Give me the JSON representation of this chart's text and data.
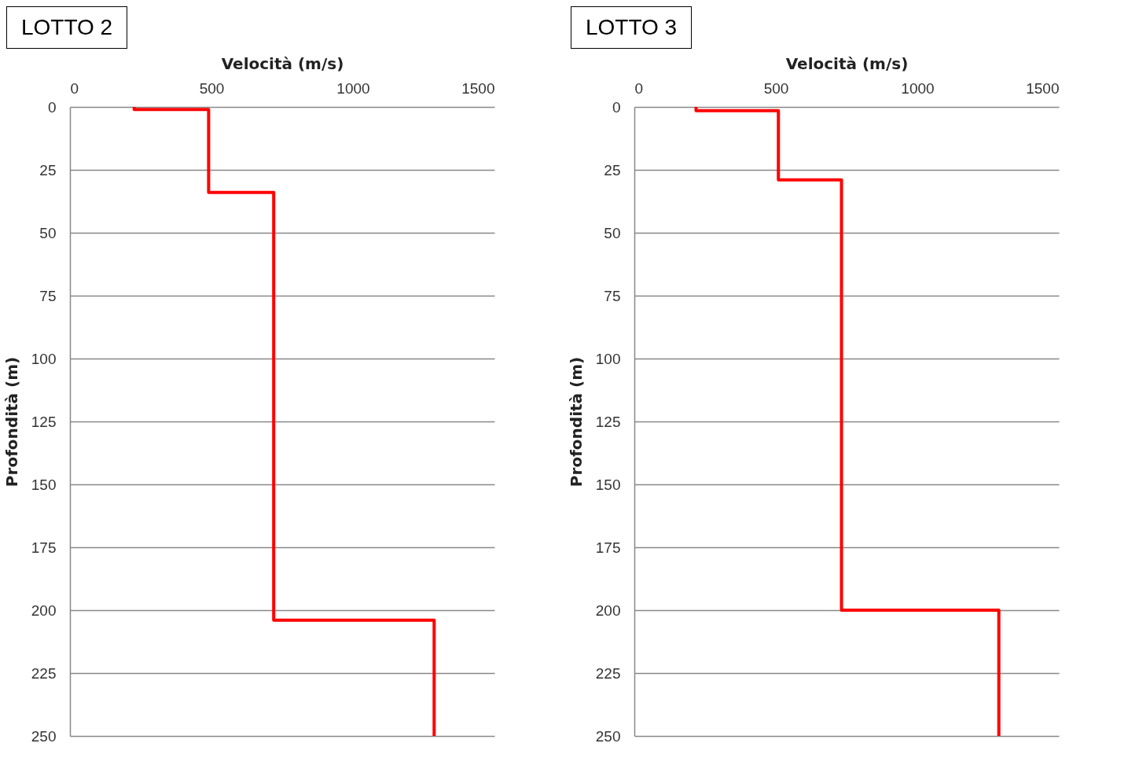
{
  "chart_data": [
    {
      "type": "line",
      "title": "LOTTO 2",
      "xlabel": "Velocità (m/s)",
      "ylabel": "Profondità (m)",
      "xlim": [
        0,
        1500
      ],
      "xticks": [
        0,
        500,
        1000,
        1500
      ],
      "ylim": [
        250,
        0
      ],
      "yticks": [
        0,
        25,
        50,
        75,
        100,
        125,
        150,
        175,
        200,
        225,
        250
      ],
      "grid": "y",
      "series": [
        {
          "color": "#ff0000",
          "x": [
            227,
            227,
            490,
            490,
            720,
            720,
            1287,
            1287
          ],
          "values": [
            0,
            1,
            1,
            34,
            34,
            204,
            204,
            250
          ]
        }
      ]
    },
    {
      "type": "line",
      "title": "LOTTO 3",
      "xlabel": "Velocità (m/s)",
      "ylabel": "Profondità (m)",
      "xlim": [
        0,
        1500
      ],
      "xticks": [
        0,
        500,
        1000,
        1500
      ],
      "ylim": [
        250,
        0
      ],
      "yticks": [
        0,
        25,
        50,
        75,
        100,
        125,
        150,
        175,
        200,
        225,
        250
      ],
      "grid": "y",
      "series": [
        {
          "color": "#ff0000",
          "x": [
            218,
            218,
            509,
            509,
            732,
            732,
            1288,
            1288
          ],
          "values": [
            0,
            1.5,
            1.5,
            29,
            29,
            200,
            200,
            250
          ]
        }
      ]
    }
  ]
}
